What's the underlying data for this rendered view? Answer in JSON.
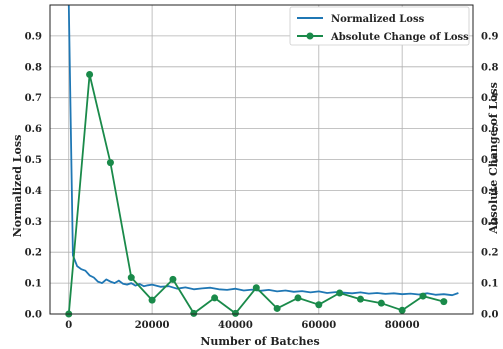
{
  "chart_data": {
    "type": "line",
    "xlabel": "Number of Batches",
    "ylabel_left": "Normalized Loss",
    "ylabel_right": "Absolute Change of Loss",
    "xlim": [
      -4500,
      97000
    ],
    "ylim_left": [
      0,
      1.0
    ],
    "ylim_right": [
      0,
      1.0
    ],
    "x_ticks": [
      0,
      20000,
      40000,
      60000,
      80000
    ],
    "y_ticks_left": [
      0.0,
      0.1,
      0.2,
      0.3,
      0.4,
      0.5,
      0.6,
      0.7,
      0.8,
      0.9
    ],
    "y_ticks_right": [
      0.0,
      0.1,
      0.2,
      0.3,
      0.4,
      0.5,
      0.6,
      0.7,
      0.8,
      0.9
    ],
    "grid": true,
    "legend_position": "top-right",
    "series": [
      {
        "name": "Normalized Loss",
        "axis": "left",
        "color": "#1f77b4",
        "marker": "none",
        "x": [
          0,
          1000,
          2000,
          3000,
          4000,
          5000,
          6000,
          7000,
          8000,
          9000,
          10000,
          11000,
          12000,
          13000,
          14000,
          15000,
          16000,
          17000,
          18000,
          19000,
          20000,
          22000,
          24000,
          26000,
          28000,
          30000,
          32000,
          34000,
          36000,
          38000,
          40000,
          42000,
          44000,
          46000,
          48000,
          50000,
          52000,
          54000,
          56000,
          58000,
          60000,
          62000,
          64000,
          66000,
          68000,
          70000,
          72000,
          74000,
          76000,
          78000,
          80000,
          82000,
          84000,
          86000,
          88000,
          90000,
          92000,
          93500
        ],
        "values": [
          1.0,
          0.19,
          0.155,
          0.145,
          0.14,
          0.125,
          0.118,
          0.105,
          0.1,
          0.112,
          0.105,
          0.1,
          0.108,
          0.098,
          0.095,
          0.1,
          0.092,
          0.097,
          0.09,
          0.093,
          0.095,
          0.088,
          0.09,
          0.082,
          0.086,
          0.08,
          0.083,
          0.085,
          0.08,
          0.078,
          0.082,
          0.076,
          0.079,
          0.075,
          0.078,
          0.073,
          0.076,
          0.072,
          0.074,
          0.07,
          0.073,
          0.068,
          0.071,
          0.069,
          0.067,
          0.07,
          0.066,
          0.068,
          0.065,
          0.067,
          0.064,
          0.066,
          0.063,
          0.067,
          0.062,
          0.064,
          0.061,
          0.068
        ]
      },
      {
        "name": "Absolute Change of Loss",
        "axis": "right",
        "color": "#1a8a4a",
        "marker": "circle",
        "x": [
          0,
          5000,
          10000,
          15000,
          20000,
          25000,
          30000,
          35000,
          40000,
          45000,
          50000,
          55000,
          60000,
          65000,
          70000,
          75000,
          80000,
          85000,
          90000
        ],
        "values": [
          0.0,
          0.775,
          0.49,
          0.118,
          0.045,
          0.112,
          0.002,
          0.052,
          0.002,
          0.085,
          0.018,
          0.052,
          0.03,
          0.068,
          0.048,
          0.035,
          0.012,
          0.058,
          0.04
        ]
      }
    ]
  }
}
